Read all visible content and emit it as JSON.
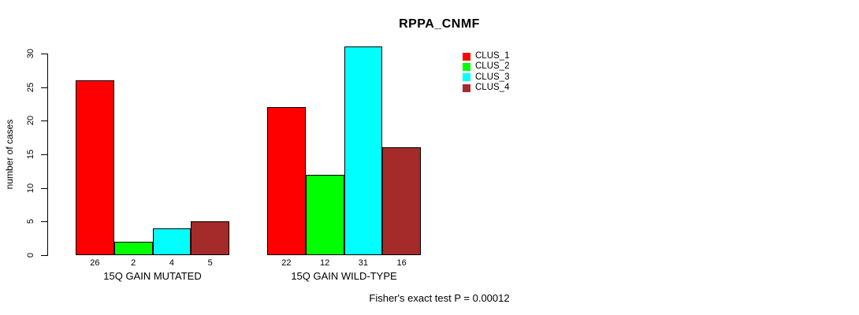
{
  "title": "RPPA_CNMF",
  "footer": "Fisher's exact test P = 0.00012",
  "chart_data": {
    "type": "bar",
    "title": "RPPA_CNMF",
    "xlabel": "",
    "ylabel": "number of cases",
    "categories": [
      "15Q GAIN MUTATED",
      "15Q GAIN WILD-TYPE"
    ],
    "series": [
      {
        "name": "CLUS_1",
        "color": "#ff0000",
        "values": [
          26,
          22
        ]
      },
      {
        "name": "CLUS_2",
        "color": "#00ff00",
        "values": [
          2,
          12
        ]
      },
      {
        "name": "CLUS_3",
        "color": "#00ffff",
        "values": [
          4,
          31
        ]
      },
      {
        "name": "CLUS_4",
        "color": "#a52a2a",
        "values": [
          5,
          16
        ]
      }
    ],
    "bar_value_labels": [
      [
        "26",
        "2",
        "4",
        "5"
      ],
      [
        "22",
        "12",
        "31",
        "16"
      ]
    ],
    "yticks": [
      0,
      5,
      10,
      15,
      20,
      25,
      30
    ],
    "ylim": [
      0,
      30
    ],
    "grid": false,
    "legend_position": "right",
    "annotation": "Fisher's exact test P = 0.00012"
  }
}
